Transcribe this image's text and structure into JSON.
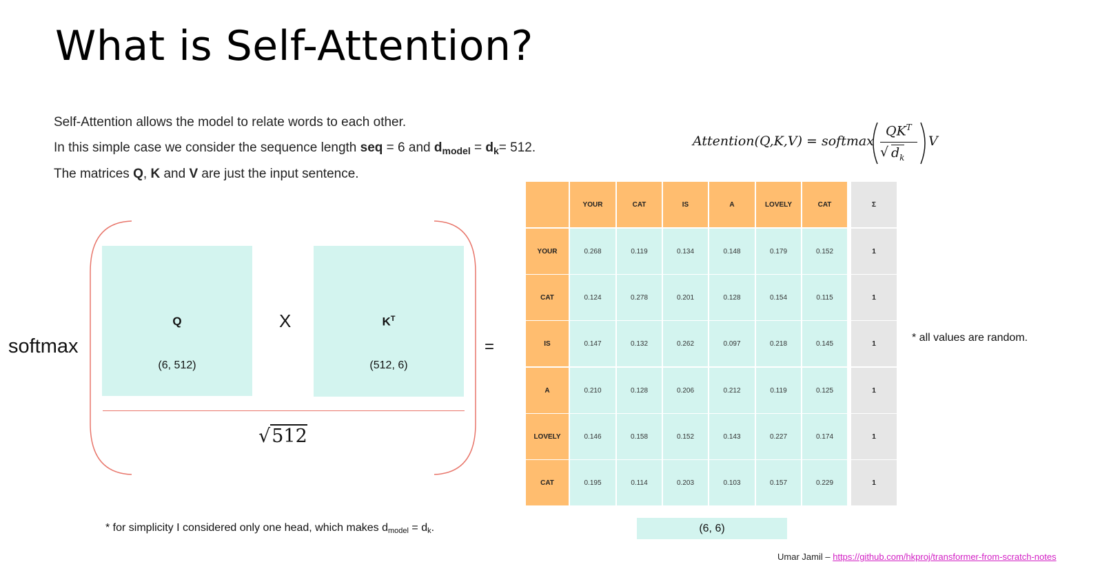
{
  "title": "What is Self-Attention?",
  "intro": {
    "line1": "Self-Attention allows the model to relate words to each other.",
    "line2_a": "In this simple case we consider the sequence length ",
    "line2_seq": "seq",
    "line2_b": " = 6 and ",
    "line2_d": "d",
    "line2_model": "model",
    "line2_c": " = ",
    "line2_dk_d": "d",
    "line2_dk_k": "k",
    "line2_e": "= 512.",
    "line3_a": "The matrices ",
    "line3_q": "Q",
    "line3_comma": ", ",
    "line3_k": "K",
    "line3_and": " and ",
    "line3_v": "V",
    "line3_b": " are just the input sentence."
  },
  "formula": {
    "lhs": "Attention(Q,K,V) = softmax",
    "numerator": "QK",
    "numerator_sup": "T",
    "denominator": "d",
    "denominator_sub": "k",
    "rhs": "V"
  },
  "softmax_label": "softmax",
  "q_matrix": {
    "label": "Q",
    "dims": "(6, 512)"
  },
  "k_matrix": {
    "label": "K",
    "label_sup": "T",
    "dims": "(512, 6)"
  },
  "times_symbol": "X",
  "sqrt_value": "512",
  "equals_symbol": "=",
  "table": {
    "columns": [
      "YOUR",
      "CAT",
      "IS",
      "A",
      "LOVELY",
      "CAT"
    ],
    "sum_header": "Σ",
    "rows": [
      {
        "label": "YOUR",
        "values": [
          "0.268",
          "0.119",
          "0.134",
          "0.148",
          "0.179",
          "0.152"
        ],
        "sum": "1"
      },
      {
        "label": "CAT",
        "values": [
          "0.124",
          "0.278",
          "0.201",
          "0.128",
          "0.154",
          "0.115"
        ],
        "sum": "1"
      },
      {
        "label": "IS",
        "values": [
          "0.147",
          "0.132",
          "0.262",
          "0.097",
          "0.218",
          "0.145"
        ],
        "sum": "1"
      },
      {
        "label": "A",
        "values": [
          "0.210",
          "0.128",
          "0.206",
          "0.212",
          "0.119",
          "0.125"
        ],
        "sum": "1"
      },
      {
        "label": "LOVELY",
        "values": [
          "0.146",
          "0.158",
          "0.152",
          "0.143",
          "0.227",
          "0.174"
        ],
        "sum": "1"
      },
      {
        "label": "CAT",
        "values": [
          "0.195",
          "0.114",
          "0.203",
          "0.103",
          "0.157",
          "0.229"
        ],
        "sum": "1"
      }
    ]
  },
  "result_dims": "(6, 6)",
  "note_random": "* all values are random.",
  "note_head": {
    "a": "* for simplicity I considered only one head, which makes d",
    "sub1": "model",
    "b": " = d",
    "sub2": "k",
    "c": "."
  },
  "credit": {
    "author": "Umar Jamil – ",
    "link": "https://github.com/hkproj/transformer-from-scratch-notes"
  },
  "colors": {
    "header_orange": "#ffbd6f",
    "cell_teal": "#d3f4ef",
    "sum_gray": "#e6e6e6",
    "bracket_red": "#e8756a",
    "link_magenta": "#d21fc4"
  }
}
